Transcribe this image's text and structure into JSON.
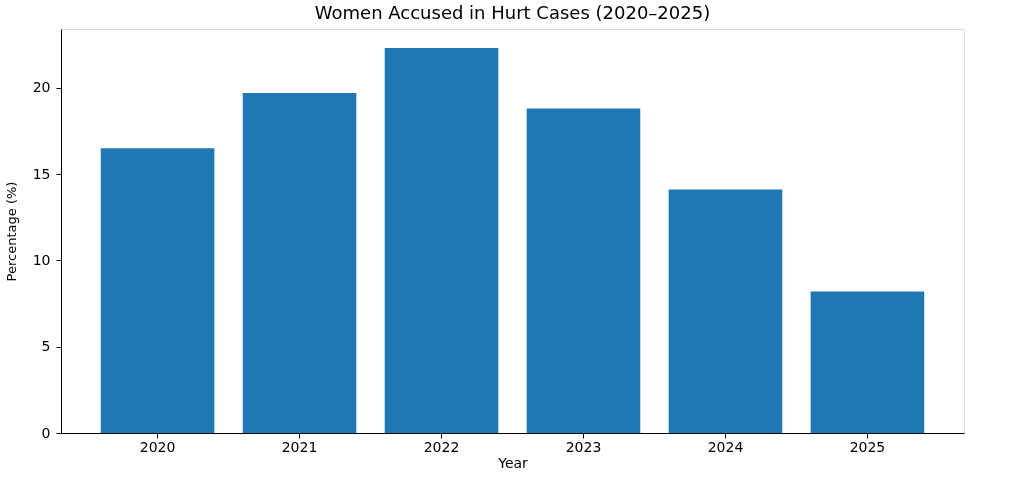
{
  "chart_data": {
    "type": "bar",
    "title": "Women Accused in Hurt Cases (2020–2025)",
    "xlabel": "Year",
    "ylabel": "Percentage (%)",
    "categories": [
      "2020",
      "2021",
      "2022",
      "2023",
      "2024",
      "2025"
    ],
    "values": [
      16.5,
      19.7,
      22.3,
      18.8,
      14.1,
      8.2
    ],
    "color": "#1f77b4",
    "ylim": [
      0,
      23.4
    ],
    "yticks": [
      0,
      5,
      10,
      15,
      20
    ],
    "grid": false
  }
}
